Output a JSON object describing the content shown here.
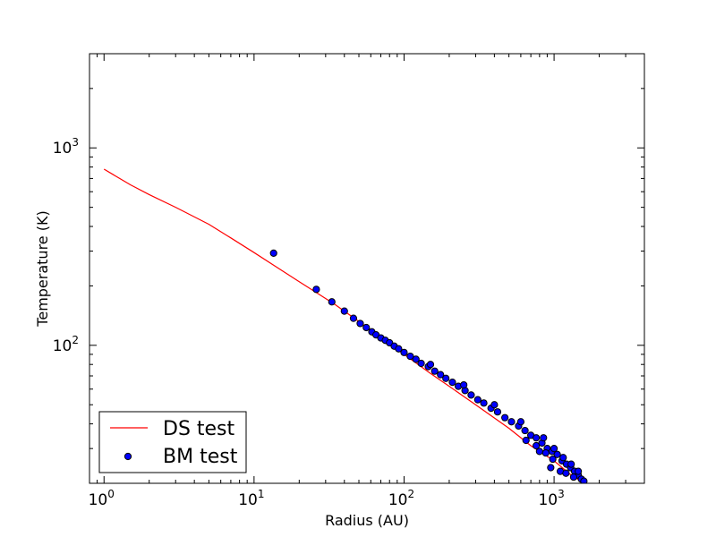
{
  "chart_data": {
    "type": "scatter",
    "xlabel": "Radius (AU)",
    "ylabel": "Temperature (K)",
    "xscale": "log",
    "yscale": "log",
    "xlim": [
      0.8,
      4000
    ],
    "ylim": [
      20,
      3000
    ],
    "x_ticks": [
      {
        "value": 1,
        "base": "10",
        "exp": "0"
      },
      {
        "value": 10,
        "base": "10",
        "exp": "1"
      },
      {
        "value": 100,
        "base": "10",
        "exp": "2"
      },
      {
        "value": 1000,
        "base": "10",
        "exp": "3"
      }
    ],
    "y_ticks": [
      {
        "value": 100,
        "base": "10",
        "exp": "2"
      },
      {
        "value": 1000,
        "base": "10",
        "exp": "3"
      }
    ],
    "legend_position": "lower-left",
    "series": [
      {
        "name": "DS test",
        "kind": "line",
        "color": "#ff0000",
        "points": [
          [
            1.0,
            780
          ],
          [
            1.5,
            650
          ],
          [
            2.0,
            580
          ],
          [
            3.0,
            500
          ],
          [
            5.0,
            410
          ],
          [
            7.0,
            350
          ],
          [
            10.0,
            295
          ],
          [
            14.0,
            250
          ],
          [
            20.0,
            210
          ],
          [
            26.0,
            185
          ],
          [
            35.0,
            160
          ],
          [
            50.0,
            132
          ],
          [
            70.0,
            110
          ],
          [
            100.0,
            90
          ],
          [
            150.0,
            72
          ],
          [
            200.0,
            62
          ],
          [
            300.0,
            50
          ],
          [
            500.0,
            38
          ],
          [
            700.0,
            31
          ],
          [
            1000.0,
            26
          ],
          [
            1300.0,
            22
          ],
          [
            1600.0,
            20
          ]
        ]
      },
      {
        "name": "BM test",
        "kind": "scatter",
        "color": "#0000ff",
        "edgecolor": "#000000",
        "points": [
          [
            13.5,
            293
          ],
          [
            26,
            192
          ],
          [
            33,
            166
          ],
          [
            40,
            149
          ],
          [
            46,
            137
          ],
          [
            51,
            129
          ],
          [
            56,
            123
          ],
          [
            61,
            117
          ],
          [
            65,
            113
          ],
          [
            70,
            109
          ],
          [
            75,
            106
          ],
          [
            80,
            103
          ],
          [
            86,
            99
          ],
          [
            92,
            96
          ],
          [
            100,
            92
          ],
          [
            110,
            88
          ],
          [
            120,
            85
          ],
          [
            130,
            81
          ],
          [
            145,
            78
          ],
          [
            160,
            74
          ],
          [
            175,
            71
          ],
          [
            190,
            68
          ],
          [
            210,
            65
          ],
          [
            230,
            62
          ],
          [
            255,
            59
          ],
          [
            280,
            56
          ],
          [
            310,
            53
          ],
          [
            340,
            51
          ],
          [
            380,
            48
          ],
          [
            420,
            46
          ],
          [
            470,
            43
          ],
          [
            520,
            41
          ],
          [
            580,
            39
          ],
          [
            640,
            37
          ],
          [
            700,
            35
          ],
          [
            760,
            34
          ],
          [
            830,
            32
          ],
          [
            900,
            30
          ],
          [
            970,
            29
          ],
          [
            1050,
            28
          ],
          [
            1130,
            26
          ],
          [
            1210,
            25
          ],
          [
            1290,
            24
          ],
          [
            1370,
            23
          ],
          [
            1450,
            22
          ],
          [
            1520,
            21
          ],
          [
            1580,
            20.5
          ],
          [
            150,
            80
          ],
          [
            250,
            63
          ],
          [
            400,
            50
          ],
          [
            600,
            41
          ],
          [
            850,
            34
          ],
          [
            1000,
            30
          ],
          [
            1150,
            27
          ],
          [
            1300,
            25
          ],
          [
            1450,
            23
          ],
          [
            950,
            24
          ],
          [
            1100,
            23
          ],
          [
            800,
            29
          ],
          [
            650,
            33
          ],
          [
            1200,
            22.5
          ],
          [
            1350,
            21.5
          ],
          [
            980,
            26.5
          ],
          [
            760,
            31
          ],
          [
            880,
            28.5
          ]
        ]
      }
    ]
  }
}
